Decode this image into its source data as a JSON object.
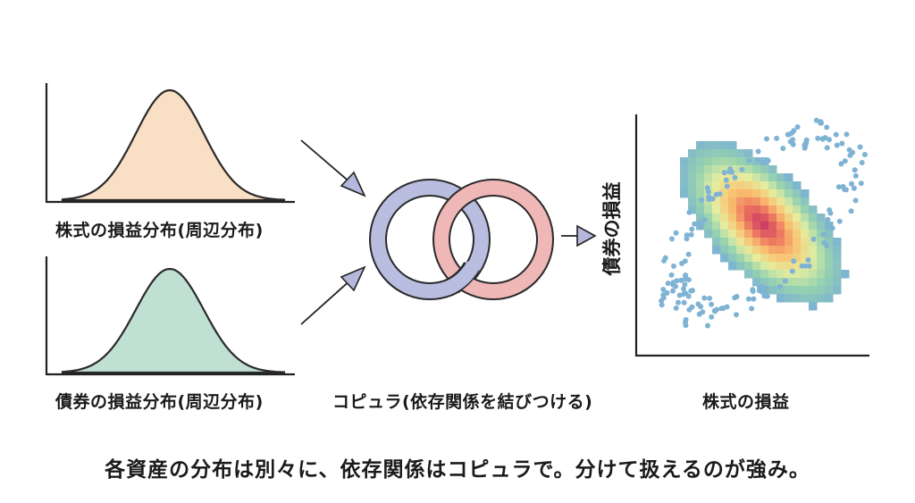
{
  "labels": {
    "stock_marginal": "株式の損益分布(周辺分布)",
    "bond_marginal": "債券の損益分布(周辺分布)",
    "copula": "コピュラ(依存関係を結びつける)",
    "scatter_xlabel": "株式の損益",
    "scatter_ylabel": "債券の損益",
    "caption": "各資産の分布は別々に、依存関係はコピュラで。分けて扱えるのが強み。"
  },
  "colors": {
    "stock_fill": "#f9dfc3",
    "bond_fill": "#bfe0d2",
    "ring_left": "#b9bde0",
    "ring_right": "#f0b7b7",
    "arrow_fill": "#b5b7dc",
    "axis": "#222222"
  },
  "icons": [
    "arrow-icon",
    "interlocked-rings-icon"
  ]
}
